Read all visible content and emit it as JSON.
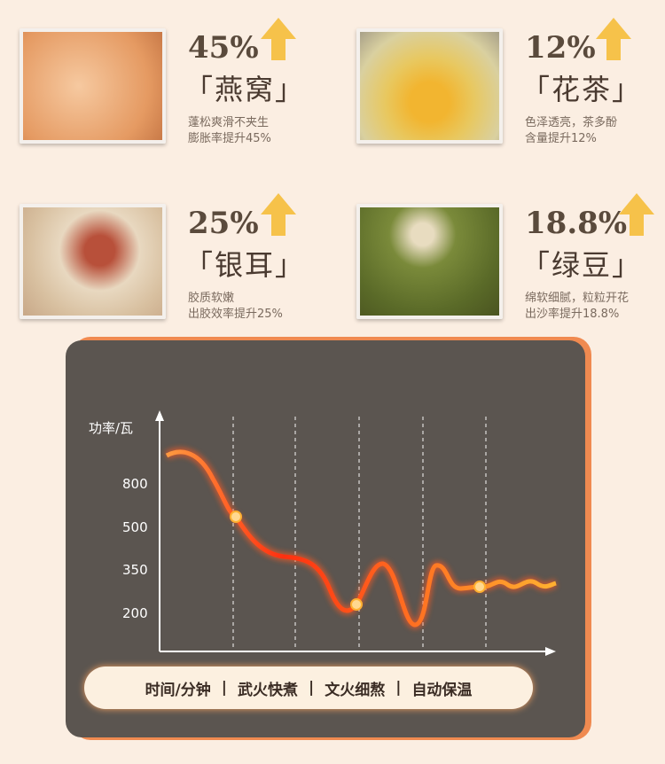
{
  "items": [
    {
      "percent": "45%",
      "name": "「燕窝」",
      "desc1": "蓬松爽滑不夹生",
      "desc2": "膨胀率提升45%",
      "image": "bird-nest-soup"
    },
    {
      "percent": "12%",
      "name": "「花茶」",
      "desc1": "色泽透亮，茶多酚",
      "desc2": "含量提升12%",
      "image": "flower-tea"
    },
    {
      "percent": "25%",
      "name": "「银耳」",
      "desc1": "胶质软嫩",
      "desc2": "出胶效率提升25%",
      "image": "white-fungus-dates"
    },
    {
      "percent": "18.8%",
      "name": "「绿豆」",
      "desc1": "绵软细腻，粒粒开花",
      "desc2": "出沙率提升18.8%",
      "image": "mung-beans"
    }
  ],
  "colors": {
    "arrow": "#f6c24a",
    "curve_start": "#ff2a10",
    "curve_end": "#ffb020",
    "panel": "#5b5550",
    "panel_border": "#f08a50"
  },
  "chart_data": {
    "type": "line",
    "ylabel": "功率/瓦",
    "yticks": [
      "800",
      "500",
      "350",
      "200"
    ],
    "xlabel": "时间/分钟",
    "phases": [
      "武火快煮",
      "文火细熬",
      "自动保温"
    ],
    "grid": "vertical dashed"
  },
  "legend": {
    "x_label": "时间/分钟",
    "sep": "|",
    "p1": "武火快煮",
    "p2": "文火细熬",
    "p3": "自动保温"
  }
}
